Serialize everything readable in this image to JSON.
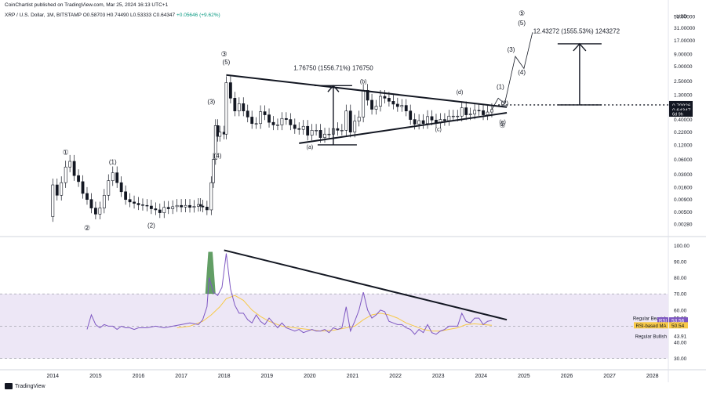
{
  "header": {
    "publisher": "CoinChartist published on TradingView.com, Mar 25, 2024 16:13 UTC+1",
    "symbol": "XRP / U.S. Dollar, 1M, BITSTAMP",
    "ohlc": "O0.58703 H0.74490 L0.53333 C0.64347",
    "change": "+0.05646 (+9.62%)"
  },
  "currency": "USD",
  "footer_brand": "TradingView",
  "colors": {
    "up": "#089981",
    "down": "#131722",
    "rsi_line": "#7e57c2",
    "rsi_ma": "#f7c948",
    "band": "#ede7f6",
    "green_fill": "#2e7d32"
  },
  "chart_data": [
    {
      "type": "candlestick",
      "scale": "log",
      "x_ticks": [
        "2014",
        "2015",
        "2016",
        "2017",
        "2018",
        "2019",
        "2020",
        "2021",
        "2022",
        "2023",
        "2024",
        "2025",
        "2026",
        "2027",
        "2028"
      ],
      "y_ticks": [
        "53.00000",
        "31.00000",
        "17.00000",
        "9.00000",
        "5.00000",
        "2.50000",
        "1.30000",
        "0.40000",
        "0.22000",
        "0.12000",
        "0.06000",
        "0.03000",
        "0.01600",
        "0.00900",
        "0.00500",
        "0.00280"
      ],
      "y_tick_values": [
        53,
        31,
        17,
        9,
        5,
        2.5,
        1.3,
        0.4,
        0.22,
        0.12,
        0.06,
        0.03,
        0.016,
        0.009,
        0.005,
        0.0028
      ],
      "ylim": [
        0.0018,
        80
      ],
      "price_labels": [
        {
          "text": "0.79926",
          "value": 0.79926,
          "style": "dark"
        },
        {
          "text": "0.64347",
          "value": 0.64347,
          "style": "dark"
        },
        {
          "text": "6d 9h",
          "value": 0.53,
          "style": "dark-small"
        }
      ],
      "monthly_close": [
        [
          2013.9,
          0.004
        ],
        [
          2014.0,
          0.018
        ],
        [
          2014.1,
          0.011
        ],
        [
          2014.2,
          0.02
        ],
        [
          2014.3,
          0.042
        ],
        [
          2014.4,
          0.055
        ],
        [
          2014.5,
          0.028
        ],
        [
          2014.6,
          0.021
        ],
        [
          2014.7,
          0.012
        ],
        [
          2014.8,
          0.009
        ],
        [
          2014.9,
          0.006
        ],
        [
          2015.0,
          0.0045
        ],
        [
          2015.1,
          0.006
        ],
        [
          2015.2,
          0.011
        ],
        [
          2015.3,
          0.022
        ],
        [
          2015.4,
          0.032
        ],
        [
          2015.5,
          0.02
        ],
        [
          2015.6,
          0.013
        ],
        [
          2015.7,
          0.009
        ],
        [
          2015.8,
          0.008
        ],
        [
          2015.9,
          0.0075
        ],
        [
          2016.0,
          0.007
        ],
        [
          2016.1,
          0.0068
        ],
        [
          2016.2,
          0.0066
        ],
        [
          2016.3,
          0.0058
        ],
        [
          2016.4,
          0.0055
        ],
        [
          2016.5,
          0.0048
        ],
        [
          2016.6,
          0.0062
        ],
        [
          2016.7,
          0.0058
        ],
        [
          2016.8,
          0.0064
        ],
        [
          2016.9,
          0.0068
        ],
        [
          2017.0,
          0.0063
        ],
        [
          2017.1,
          0.0068
        ],
        [
          2017.2,
          0.0062
        ],
        [
          2017.3,
          0.0065
        ],
        [
          2017.4,
          0.0071
        ],
        [
          2017.45,
          0.0066
        ],
        [
          2017.5,
          0.0063
        ],
        [
          2017.6,
          0.0055
        ],
        [
          2017.7,
          0.02
        ],
        [
          2017.75,
          0.06
        ],
        [
          2017.8,
          0.3
        ],
        [
          2017.85,
          0.18
        ],
        [
          2017.9,
          0.22
        ],
        [
          2018.0,
          0.2
        ],
        [
          2018.05,
          2.3
        ],
        [
          2018.15,
          1.1
        ],
        [
          2018.25,
          0.6
        ],
        [
          2018.35,
          0.85
        ],
        [
          2018.45,
          0.6
        ],
        [
          2018.55,
          0.45
        ],
        [
          2018.65,
          0.33
        ],
        [
          2018.75,
          0.33
        ],
        [
          2018.85,
          0.58
        ],
        [
          2018.95,
          0.5
        ],
        [
          2019.05,
          0.35
        ],
        [
          2019.15,
          0.31
        ],
        [
          2019.25,
          0.31
        ],
        [
          2019.35,
          0.42
        ],
        [
          2019.45,
          0.4
        ],
        [
          2019.55,
          0.31
        ],
        [
          2019.65,
          0.26
        ],
        [
          2019.75,
          0.25
        ],
        [
          2019.85,
          0.29
        ],
        [
          2019.95,
          0.19
        ],
        [
          2020.05,
          0.24
        ],
        [
          2020.15,
          0.24
        ],
        [
          2020.25,
          0.17
        ],
        [
          2020.35,
          0.2
        ],
        [
          2020.45,
          0.2
        ],
        [
          2020.55,
          0.26
        ],
        [
          2020.65,
          0.24
        ],
        [
          2020.75,
          0.24
        ],
        [
          2020.85,
          0.6
        ],
        [
          2020.95,
          0.22
        ],
        [
          2021.05,
          0.37
        ],
        [
          2021.15,
          0.45
        ],
        [
          2021.25,
          1.6
        ],
        [
          2021.35,
          1.0
        ],
        [
          2021.45,
          0.65
        ],
        [
          2021.55,
          0.75
        ],
        [
          2021.65,
          1.2
        ],
        [
          2021.75,
          1.1
        ],
        [
          2021.85,
          0.95
        ],
        [
          2021.95,
          0.83
        ],
        [
          2022.05,
          0.74
        ],
        [
          2022.15,
          0.78
        ],
        [
          2022.25,
          0.6
        ],
        [
          2022.35,
          0.4
        ],
        [
          2022.45,
          0.32
        ],
        [
          2022.55,
          0.38
        ],
        [
          2022.65,
          0.33
        ],
        [
          2022.75,
          0.46
        ],
        [
          2022.85,
          0.39
        ],
        [
          2022.95,
          0.34
        ],
        [
          2023.05,
          0.4
        ],
        [
          2023.15,
          0.38
        ],
        [
          2023.25,
          0.47
        ],
        [
          2023.35,
          0.47
        ],
        [
          2023.45,
          0.47
        ],
        [
          2023.55,
          0.7
        ],
        [
          2023.65,
          0.5
        ],
        [
          2023.75,
          0.52
        ],
        [
          2023.85,
          0.62
        ],
        [
          2023.95,
          0.61
        ],
        [
          2024.05,
          0.5
        ],
        [
          2024.15,
          0.57
        ],
        [
          2024.25,
          0.64
        ]
      ],
      "annotations": {
        "measured_moves": [
          {
            "text": "1.76750 (1556.71%) 176750"
          },
          {
            "text": "12.43272 (1555.53%) 1243272"
          }
        ],
        "waves": [
          "①",
          "②",
          "③",
          "④",
          "⑤",
          "(1)",
          "(2)",
          "(3)",
          "(4)",
          "(5)",
          "(a)",
          "(b)",
          "(c)",
          "(d)",
          "(e)"
        ]
      }
    },
    {
      "type": "line",
      "name": "RSI",
      "y_ticks": [
        "100.00",
        "90.00",
        "80.00",
        "70.00",
        "60.00",
        "50.00",
        "40.00",
        "30.00"
      ],
      "y_tick_values": [
        100,
        90,
        80,
        70,
        60,
        50,
        40,
        30
      ],
      "ylim": [
        25,
        104
      ],
      "band": [
        30,
        70
      ],
      "labels": [
        {
          "text": "Regular Bearish",
          "value": 55.09,
          "value_text": "55.09",
          "style": "plain"
        },
        {
          "text": "RSI",
          "value": 53.56,
          "value_text": "53.56",
          "style": "purple"
        },
        {
          "text": "RSI-based MA",
          "value": 50.54,
          "value_text": "50.54",
          "style": "yellow"
        },
        {
          "text": "Regular Bullish",
          "value": 43.91,
          "value_text": "43.91",
          "style": "plain"
        }
      ],
      "rsi": [
        [
          2014.8,
          48
        ],
        [
          2014.9,
          57
        ],
        [
          2015.0,
          51
        ],
        [
          2015.1,
          49
        ],
        [
          2015.2,
          51
        ],
        [
          2015.3,
          50
        ],
        [
          2015.4,
          50
        ],
        [
          2015.5,
          48
        ],
        [
          2015.6,
          50
        ],
        [
          2015.7,
          49
        ],
        [
          2015.8,
          49
        ],
        [
          2015.9,
          48
        ],
        [
          2016.0,
          49
        ],
        [
          2016.2,
          49
        ],
        [
          2016.4,
          50
        ],
        [
          2016.6,
          49
        ],
        [
          2016.8,
          50
        ],
        [
          2017.0,
          51
        ],
        [
          2017.2,
          52
        ],
        [
          2017.4,
          51
        ],
        [
          2017.5,
          54
        ],
        [
          2017.6,
          62
        ],
        [
          2017.65,
          80
        ],
        [
          2017.75,
          71
        ],
        [
          2017.85,
          69
        ],
        [
          2017.95,
          74
        ],
        [
          2018.05,
          95
        ],
        [
          2018.15,
          73
        ],
        [
          2018.25,
          63
        ],
        [
          2018.35,
          58
        ],
        [
          2018.45,
          58
        ],
        [
          2018.55,
          54
        ],
        [
          2018.65,
          52
        ],
        [
          2018.75,
          57
        ],
        [
          2018.85,
          53
        ],
        [
          2018.95,
          51
        ],
        [
          2019.05,
          55
        ],
        [
          2019.15,
          52
        ],
        [
          2019.25,
          49
        ],
        [
          2019.35,
          52
        ],
        [
          2019.45,
          49
        ],
        [
          2019.55,
          48
        ],
        [
          2019.65,
          47
        ],
        [
          2019.75,
          48
        ],
        [
          2019.85,
          46
        ],
        [
          2019.95,
          47
        ],
        [
          2020.05,
          48
        ],
        [
          2020.15,
          47
        ],
        [
          2020.25,
          47
        ],
        [
          2020.35,
          48
        ],
        [
          2020.45,
          46
        ],
        [
          2020.55,
          49
        ],
        [
          2020.65,
          48
        ],
        [
          2020.75,
          49
        ],
        [
          2020.85,
          62
        ],
        [
          2020.95,
          47
        ],
        [
          2021.05,
          53
        ],
        [
          2021.15,
          60
        ],
        [
          2021.25,
          71
        ],
        [
          2021.35,
          60
        ],
        [
          2021.45,
          55
        ],
        [
          2021.55,
          57
        ],
        [
          2021.65,
          60
        ],
        [
          2021.75,
          59
        ],
        [
          2021.85,
          53
        ],
        [
          2021.95,
          52
        ],
        [
          2022.05,
          51
        ],
        [
          2022.15,
          51
        ],
        [
          2022.25,
          49
        ],
        [
          2022.35,
          48
        ],
        [
          2022.45,
          45
        ],
        [
          2022.55,
          48
        ],
        [
          2022.65,
          46
        ],
        [
          2022.75,
          51
        ],
        [
          2022.85,
          46
        ],
        [
          2022.95,
          45
        ],
        [
          2023.05,
          47
        ],
        [
          2023.15,
          48
        ],
        [
          2023.25,
          50
        ],
        [
          2023.35,
          50
        ],
        [
          2023.45,
          50
        ],
        [
          2023.55,
          58
        ],
        [
          2023.65,
          53
        ],
        [
          2023.75,
          52
        ],
        [
          2023.85,
          55
        ],
        [
          2023.95,
          55
        ],
        [
          2024.05,
          51
        ],
        [
          2024.15,
          53
        ],
        [
          2024.25,
          53.56
        ]
      ],
      "rsi_ma": [
        [
          2016.9,
          49
        ],
        [
          2017.2,
          50
        ],
        [
          2017.5,
          53
        ],
        [
          2017.7,
          57
        ],
        [
          2017.9,
          62
        ],
        [
          2018.05,
          67
        ],
        [
          2018.25,
          69
        ],
        [
          2018.45,
          66
        ],
        [
          2018.65,
          60
        ],
        [
          2018.85,
          56
        ],
        [
          2019.05,
          53
        ],
        [
          2019.35,
          50
        ],
        [
          2019.65,
          49
        ],
        [
          2019.95,
          48
        ],
        [
          2020.25,
          47
        ],
        [
          2020.55,
          47.5
        ],
        [
          2020.85,
          49
        ],
        [
          2021.05,
          50
        ],
        [
          2021.25,
          54
        ],
        [
          2021.45,
          57
        ],
        [
          2021.65,
          58
        ],
        [
          2021.85,
          57
        ],
        [
          2022.05,
          55
        ],
        [
          2022.25,
          52
        ],
        [
          2022.45,
          50
        ],
        [
          2022.65,
          48
        ],
        [
          2022.85,
          47
        ],
        [
          2023.05,
          47
        ],
        [
          2023.25,
          48
        ],
        [
          2023.45,
          49
        ],
        [
          2023.65,
          51
        ],
        [
          2023.85,
          51.5
        ],
        [
          2024.05,
          51
        ],
        [
          2024.25,
          50.54
        ]
      ]
    }
  ]
}
